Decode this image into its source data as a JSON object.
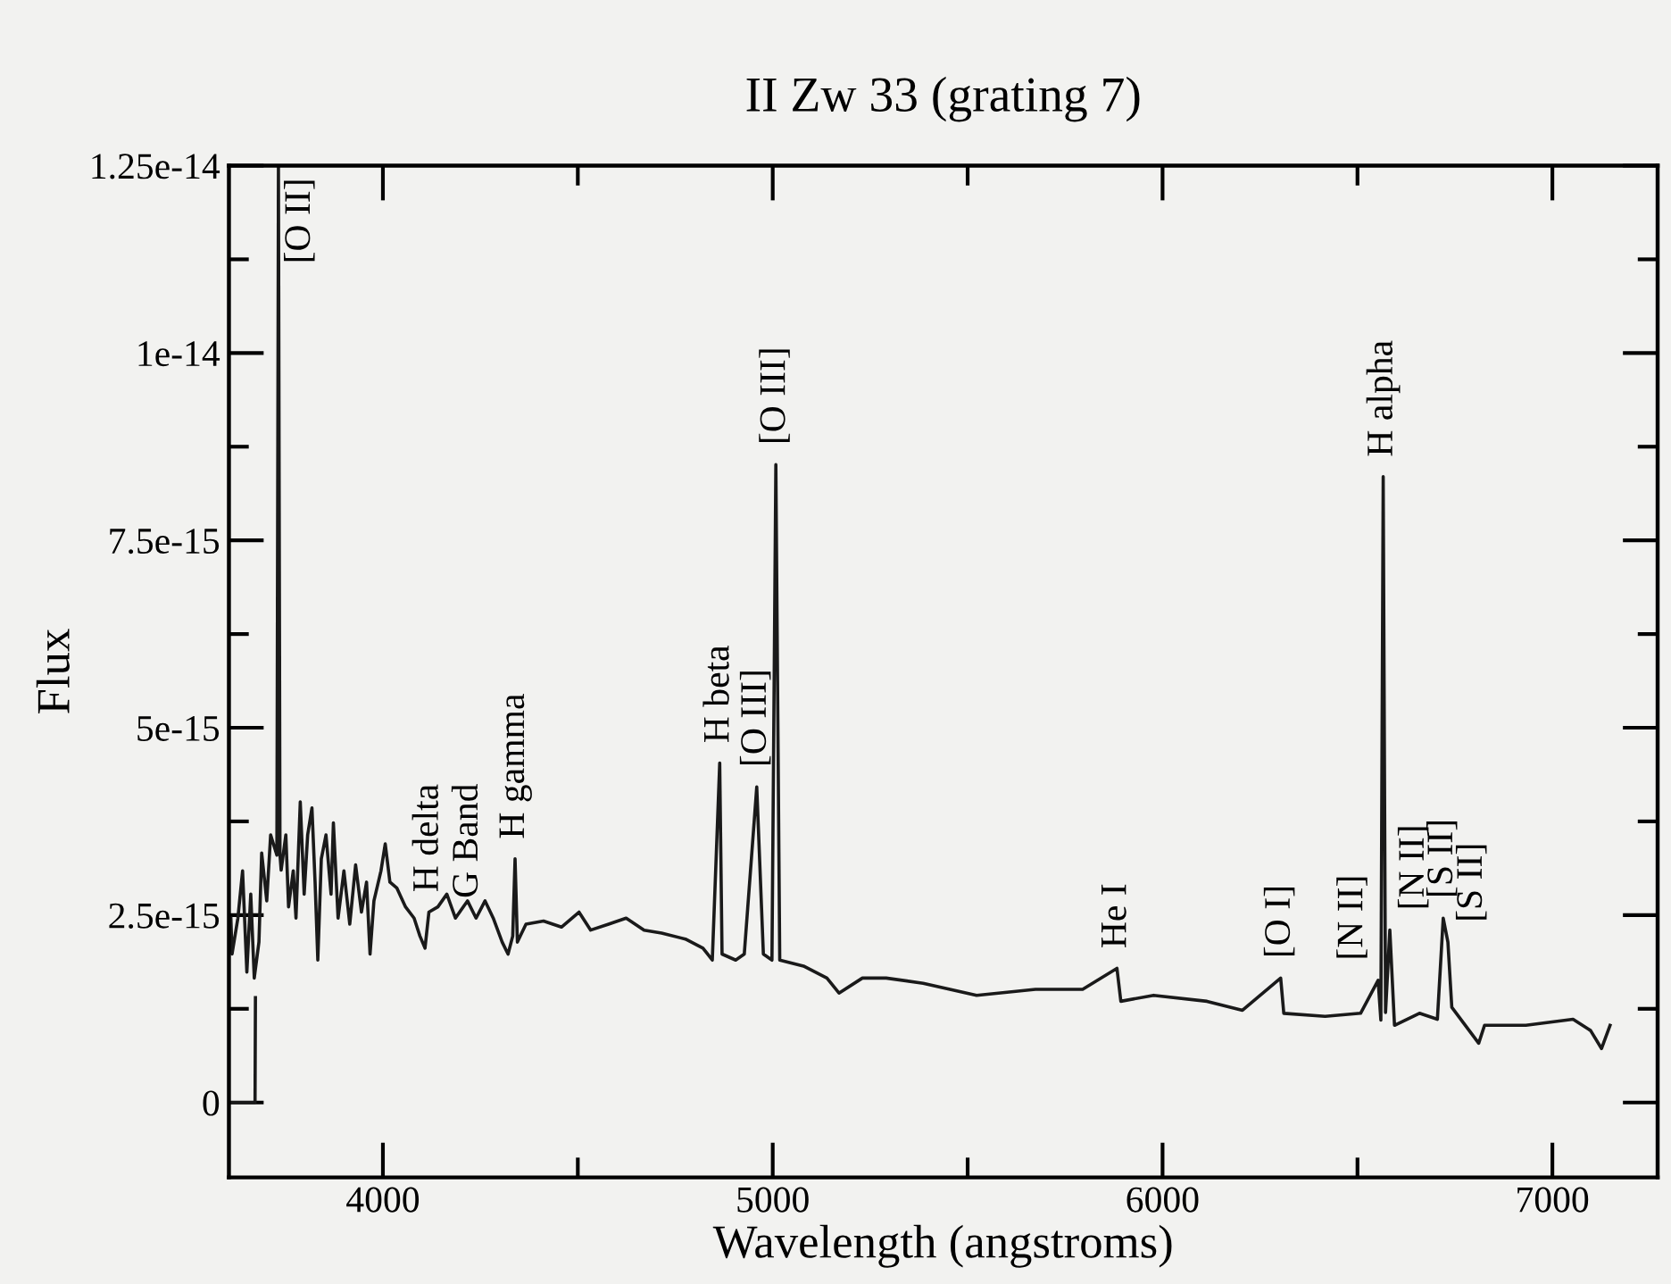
{
  "chart_data": {
    "type": "line",
    "title": "II Zw 33 (grating 7)",
    "xlabel": "Wavelength (angstroms)",
    "ylabel": "Flux",
    "xlim": [
      3605,
      7270
    ],
    "ylim": [
      -1e-15,
      1.25e-14
    ],
    "xticks": [
      4000,
      {
        "value": 4500,
        "label": null
      },
      5000,
      {
        "value": 5500,
        "label": null
      },
      6000,
      {
        "value": 6500,
        "label": null
      },
      7000
    ],
    "yticks": [
      0,
      {
        "value": 1.25e-15,
        "label": null
      },
      2.5e-15,
      {
        "value": 3.75e-15,
        "label": null
      },
      5e-15,
      {
        "value": 6.25e-15,
        "label": null
      },
      7.5e-15,
      {
        "value": 8.75e-15,
        "label": null
      },
      1e-14,
      {
        "value": 1.125e-14,
        "label": null
      },
      1.25e-14
    ],
    "line_style": "solid",
    "marker": "none",
    "series": [
      {
        "color": "#1a1a1a",
        "x": [
          3606,
          3672,
          3673
        ],
        "values": [
          0,
          0,
          1.4e-15
        ]
      },
      {
        "color": "#1a1a1a",
        "x": [
          3610,
          3613,
          3628,
          3640,
          3651,
          3661,
          3670,
          3682,
          3689,
          3702,
          3712,
          3728,
          3732,
          3736,
          3739,
          3751,
          3758,
          3770,
          3777,
          3788,
          3798,
          3807,
          3818,
          3826,
          3833,
          3842,
          3854,
          3867,
          3873,
          3885,
          3900,
          3915,
          3930,
          3945,
          3958,
          3967,
          3977,
          3995,
          4006,
          4018,
          4036,
          4058,
          4080,
          4095,
          4108,
          4118,
          4141,
          4164,
          4186,
          4217,
          4239,
          4262,
          4283,
          4306,
          4321,
          4333,
          4339,
          4345,
          4367,
          4412,
          4458,
          4503,
          4533,
          4579,
          4624,
          4670,
          4715,
          4776,
          4821,
          4845,
          4864,
          4870,
          4905,
          4927,
          4959,
          4976,
          4998,
          5008,
          5018,
          5079,
          5139,
          5170,
          5230,
          5291,
          5386,
          5523,
          5674,
          5795,
          5883,
          5893,
          5977,
          6114,
          6205,
          6303,
          6311,
          6417,
          6508,
          6553,
          6560,
          6566,
          6572,
          6583,
          6595,
          6659,
          6705,
          6720,
          6732,
          6742,
          6811,
          6826,
          6932,
          7053,
          7098,
          7126,
          7148
        ],
        "values": [
          2.46e-15,
          1.98e-15,
          2.46e-15,
          3.09e-15,
          1.74e-15,
          2.78e-15,
          1.66e-15,
          2.14e-15,
          3.33e-15,
          2.69e-15,
          3.57e-15,
          3.3e-15,
          1.25e-14,
          3.3e-15,
          3.1e-15,
          3.57e-15,
          2.61e-15,
          3.09e-15,
          2.46e-15,
          4.01e-15,
          2.78e-15,
          3.57e-15,
          3.93e-15,
          2.94e-15,
          1.9e-15,
          3.25e-15,
          3.57e-15,
          2.78e-15,
          3.73e-15,
          2.46e-15,
          3.09e-15,
          2.38e-15,
          3.17e-15,
          2.54e-15,
          2.94e-15,
          1.98e-15,
          2.69e-15,
          3.09e-15,
          3.45e-15,
          2.94e-15,
          2.86e-15,
          2.61e-15,
          2.46e-15,
          2.22e-15,
          2.06e-15,
          2.54e-15,
          2.61e-15,
          2.78e-15,
          2.46e-15,
          2.69e-15,
          2.46e-15,
          2.69e-15,
          2.46e-15,
          2.14e-15,
          1.98e-15,
          2.22e-15,
          3.25e-15,
          2.14e-15,
          2.38e-15,
          2.42e-15,
          2.34e-15,
          2.54e-15,
          2.3e-15,
          2.38e-15,
          2.46e-15,
          2.3e-15,
          2.26e-15,
          2.18e-15,
          2.06e-15,
          1.9e-15,
          4.53e-15,
          1.98e-15,
          1.9e-15,
          1.98e-15,
          4.21e-15,
          1.98e-15,
          1.9e-15,
          8.51e-15,
          1.9e-15,
          1.82e-15,
          1.66e-15,
          1.46e-15,
          1.66e-15,
          1.66e-15,
          1.59e-15,
          1.43e-15,
          1.51e-15,
          1.51e-15,
          1.79e-15,
          1.35e-15,
          1.43e-15,
          1.35e-15,
          1.23e-15,
          1.66e-15,
          1.19e-15,
          1.15e-15,
          1.19e-15,
          1.63e-15,
          1.1e-15,
          8.35e-15,
          1.2e-15,
          2.3e-15,
          1.03e-15,
          1.19e-15,
          1.11e-15,
          2.46e-15,
          2.14e-15,
          1.27e-15,
          7.9e-16,
          1.03e-15,
          1.03e-15,
          1.11e-15,
          9.6e-16,
          7.2e-16,
          1.03e-15
        ]
      }
    ],
    "annotations": [
      {
        "text": "[O II]",
        "x": 3732,
        "y": 1.25e-14
      },
      {
        "text": "H delta",
        "x": 4118,
        "y": 2.54e-15
      },
      {
        "text": "G Band",
        "x": 4283,
        "y": 2.46e-15
      },
      {
        "text": "H gamma",
        "x": 4339,
        "y": 3.25e-15
      },
      {
        "text": "H beta",
        "x": 4864,
        "y": 4.53e-15
      },
      {
        "text": "[O III]",
        "x": 4959,
        "y": 4.21e-15
      },
      {
        "text": "[O III]",
        "x": 5008,
        "y": 8.51e-15
      },
      {
        "text": "He I",
        "x": 5883,
        "y": 1.79e-15
      },
      {
        "text": "[O I]",
        "x": 6303,
        "y": 1.66e-15
      },
      {
        "text": "[N II]",
        "x": 6553,
        "y": 1.63e-15
      },
      {
        "text": "H alpha",
        "x": 6566,
        "y": 8.35e-15
      },
      {
        "text": "[N II]",
        "x": 6583,
        "y": 2.3e-15
      },
      {
        "text": "[S II]",
        "x": 6720,
        "y": 2.46e-15
      },
      {
        "text": "[S II]",
        "x": 6732,
        "y": 2.14e-15
      }
    ]
  }
}
